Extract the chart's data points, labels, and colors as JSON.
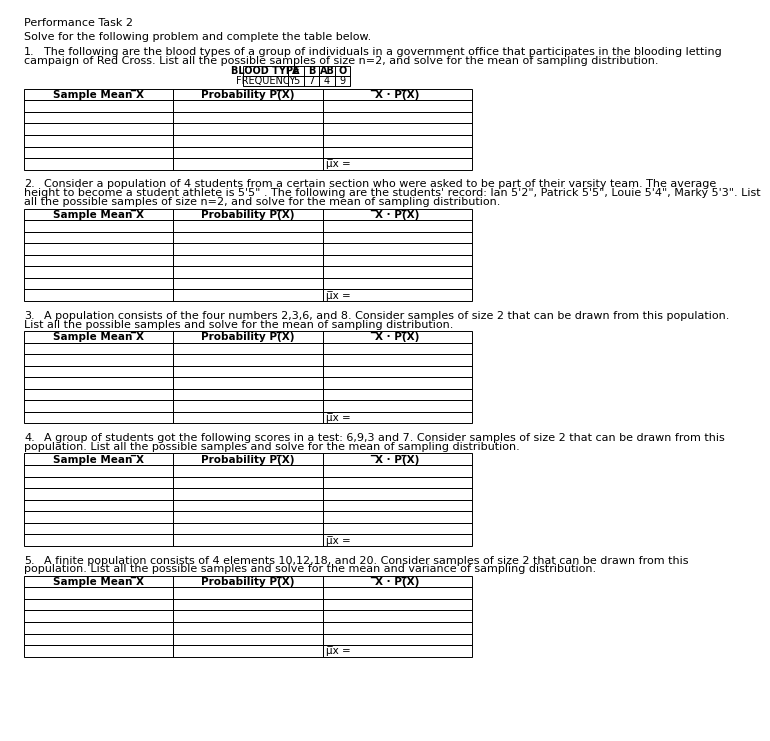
{
  "title": "Performance Task 2",
  "subtitle": "Solve for the following problem and complete the table below.",
  "bg_color": "#ffffff",
  "problems": [
    {
      "number": "1.",
      "line1": "The following are the blood types of a group of individuals in a government office that participates in the blooding letting",
      "line2": "campaign of Red Cross. List all the possible samples of size n=2, and solve for the mean of sampling distribution.",
      "has_blood_table": true,
      "blood_headers": [
        "BLOOD TYPE",
        "A",
        "B",
        "AB",
        "O"
      ],
      "blood_values": [
        "FREQUENCY",
        "5",
        "7",
        "4",
        "9"
      ],
      "col1": "Sample Mean ̅X",
      "col2": "Probability P(̅X)",
      "col3": "̅X · P(̅X)",
      "data_rows": 5,
      "mu_label": "μ̅x ="
    },
    {
      "number": "2.",
      "line1": "Consider a population of 4 students from a certain section who were asked to be part of their varsity team. The average",
      "line2": "height to become a student athlete is 5'5\" . The following are the students' record: Ian 5'2\", Patrick 5'5\", Louie 5'4\", Marky 5'3\". List",
      "line3": "all the possible samples of size n=2, and solve for the mean of sampling distribution.",
      "has_blood_table": false,
      "col1": "Sample Mean ̅X",
      "col2": "Probability P(̅X)",
      "col3": "̅X · P(̅X)",
      "data_rows": 6,
      "mu_label": "μ̅x ="
    },
    {
      "number": "3.",
      "line1": "A population consists of the four numbers 2,3,6, and 8. Consider samples of size 2 that can be drawn from this population.",
      "line2": "List all the possible samples and solve for the mean of sampling distribution.",
      "has_blood_table": false,
      "col1": "Sample Mean ̅X",
      "col2": "Probability P(̅X)",
      "col3": "̅X · P(̅X)",
      "data_rows": 6,
      "mu_label": "μ̅x ="
    },
    {
      "number": "4.",
      "line1": "A group of students got the following scores in a test: 6,9,3 and 7. Consider samples of size 2 that can be drawn from this",
      "line2": "population. List all the possible samples and solve for the mean of sampling distribution.",
      "has_blood_table": false,
      "col1": "Sample Mean ̅X",
      "col2": "Probability P(̅X)",
      "col3": "̅X · P(̅X)",
      "data_rows": 6,
      "mu_label": "μ̅x ="
    },
    {
      "number": "5.",
      "line1": "A finite population consists of 4 elements 10,12,18, and 20. Consider samples of size 2 that can be drawn from this",
      "line2": "population. List all the possible samples and solve for the mean and variance of sampling distribution.",
      "has_blood_table": false,
      "col1": "Sample Mean ̅X",
      "col2": "Probability P(̅X)",
      "col3": "̅X · P(̅X)",
      "data_rows": 5,
      "mu_label": "μ̅x ="
    }
  ]
}
